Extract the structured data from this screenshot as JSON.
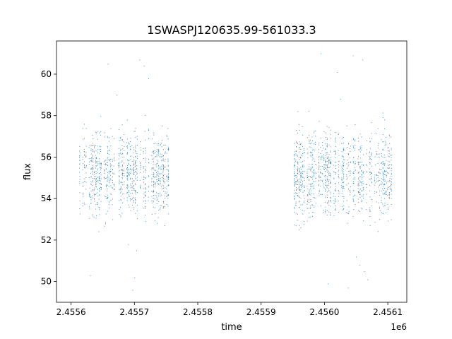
{
  "chart_data": {
    "type": "scatter",
    "title": "1SWASPJ120635.99-561033.3",
    "xlabel": "time",
    "ylabel": "flux",
    "x_offset_label": "1e6",
    "xlim": [
      2455577,
      2456130
    ],
    "ylim": [
      49.0,
      61.6
    ],
    "x_ticks": [
      {
        "value": 2455600,
        "label": "2.4556"
      },
      {
        "value": 2455700,
        "label": "2.4557"
      },
      {
        "value": 2455800,
        "label": "2.4558"
      },
      {
        "value": 2455900,
        "label": "2.4559"
      },
      {
        "value": 2456000,
        "label": "2.4560"
      },
      {
        "value": 2456100,
        "label": "2.4561"
      }
    ],
    "y_ticks": [
      {
        "value": 50,
        "label": "50"
      },
      {
        "value": 52,
        "label": "52"
      },
      {
        "value": 54,
        "label": "54"
      },
      {
        "value": 56,
        "label": "56"
      },
      {
        "value": 58,
        "label": "58"
      },
      {
        "value": 60,
        "label": "60"
      }
    ],
    "grid": false,
    "legend": "none",
    "marker_color": "#1f77b4",
    "series": [
      {
        "name": "",
        "segments": [
          {
            "x_start": 2455613,
            "x_end": 2455753,
            "center": 55.2,
            "spread": 1.3,
            "outliers": [
              [
                2455630,
                50.3
              ],
              [
                2455658,
                60.5
              ],
              [
                2455672,
                59.0
              ],
              [
                2455690,
                51.8
              ],
              [
                2455697,
                49.6
              ],
              [
                2455700,
                50.2
              ],
              [
                2455708,
                60.7
              ],
              [
                2455715,
                60.4
              ],
              [
                2455722,
                59.8
              ],
              [
                2455703,
                51.5
              ]
            ]
          },
          {
            "x_start": 2455952,
            "x_end": 2456105,
            "center": 55.2,
            "spread": 1.4,
            "outliers": [
              [
                2455994,
                61.0
              ],
              [
                2456020,
                60.1
              ],
              [
                2456045,
                60.9
              ],
              [
                2456060,
                60.7
              ],
              [
                2456055,
                50.8
              ],
              [
                2456062,
                50.5
              ],
              [
                2456068,
                50.1
              ],
              [
                2456005,
                49.9
              ],
              [
                2456037,
                49.7
              ],
              [
                2456050,
                51.2
              ],
              [
                2456025,
                58.8
              ]
            ]
          }
        ]
      }
    ]
  }
}
